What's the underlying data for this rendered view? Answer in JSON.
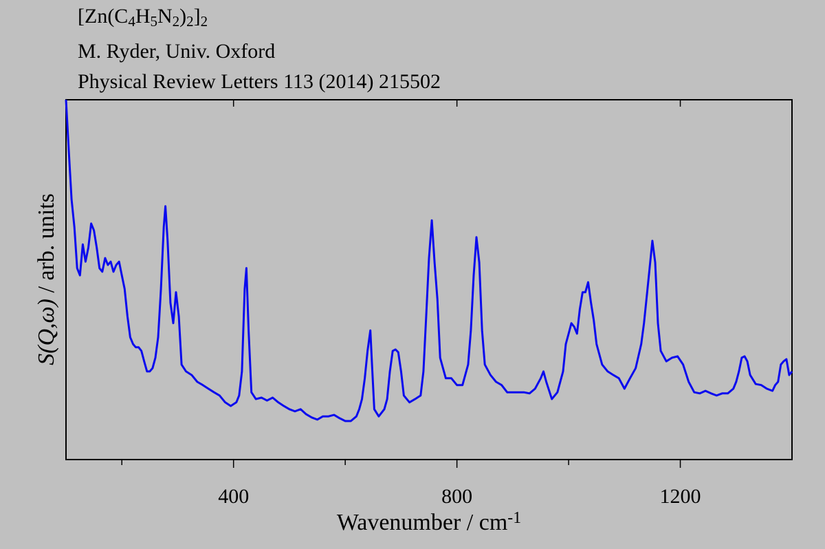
{
  "chart_data": {
    "type": "line",
    "title": [
      {
        "text": "[Zn(C"
      },
      {
        "text": "4",
        "sub": true
      },
      {
        "text": "H"
      },
      {
        "text": "5",
        "sub": true
      },
      {
        "text": "N"
      },
      {
        "text": "2",
        "sub": true
      },
      {
        "text": ")"
      },
      {
        "text": "2",
        "sub": true
      },
      {
        "text": "]"
      },
      {
        "text": "2",
        "sub": true
      }
    ],
    "subtitle": [
      "M. Ryder, Univ. Oxford",
      "Physical Review Letters 113 (2014) 215502"
    ],
    "xlabel": [
      {
        "text": "Wavenumber / cm"
      },
      {
        "text": "-1",
        "sup": true
      }
    ],
    "ylabel": [
      {
        "text": "S(Q,ω)",
        "italic": true
      },
      {
        "text": " / arb. units"
      }
    ],
    "xlim": [
      100,
      1400
    ],
    "xticks": [
      400,
      800,
      1200
    ],
    "xminor": [
      200,
      600,
      1000
    ],
    "ylim": [
      0,
      100
    ],
    "grid": false,
    "series": [
      {
        "color": "#0a0aee",
        "x": [
          100,
          105,
          110,
          115,
          120,
          125,
          130,
          135,
          140,
          145,
          150,
          155,
          160,
          165,
          170,
          175,
          180,
          185,
          190,
          195,
          200,
          205,
          210,
          215,
          220,
          225,
          230,
          235,
          240,
          245,
          250,
          255,
          260,
          265,
          270,
          275,
          278,
          282,
          287,
          292,
          297,
          302,
          307,
          315,
          325,
          335,
          345,
          355,
          365,
          375,
          385,
          395,
          405,
          410,
          415,
          420,
          423,
          427,
          432,
          440,
          450,
          460,
          470,
          480,
          490,
          500,
          510,
          520,
          530,
          540,
          550,
          560,
          570,
          580,
          590,
          600,
          610,
          620,
          625,
          630,
          635,
          640,
          645,
          648,
          652,
          660,
          670,
          675,
          680,
          685,
          690,
          695,
          700,
          705,
          715,
          725,
          735,
          740,
          745,
          750,
          755,
          760,
          765,
          770,
          780,
          790,
          800,
          810,
          820,
          825,
          830,
          835,
          840,
          845,
          850,
          860,
          870,
          880,
          890,
          900,
          910,
          920,
          930,
          940,
          950,
          955,
          960,
          970,
          980,
          990,
          995,
          1000,
          1005,
          1010,
          1015,
          1020,
          1025,
          1030,
          1035,
          1040,
          1045,
          1050,
          1060,
          1070,
          1080,
          1090,
          1100,
          1110,
          1120,
          1130,
          1135,
          1140,
          1145,
          1150,
          1155,
          1160,
          1165,
          1175,
          1185,
          1195,
          1205,
          1215,
          1225,
          1235,
          1245,
          1255,
          1265,
          1275,
          1285,
          1295,
          1300,
          1305,
          1310,
          1315,
          1320,
          1325,
          1335,
          1345,
          1355,
          1365,
          1370,
          1375,
          1380,
          1385,
          1390,
          1395,
          1400
        ],
        "values": [
          100,
          85.7,
          72.3,
          64.6,
          53.2,
          51.2,
          59.8,
          55,
          58.9,
          65.6,
          63.7,
          58.9,
          53.2,
          52.2,
          56,
          54.1,
          55,
          52.2,
          54.1,
          55,
          51.2,
          47.4,
          39.8,
          34,
          32.1,
          31.2,
          31.2,
          30.2,
          27.3,
          24.5,
          24.5,
          25.4,
          28.3,
          34,
          47.4,
          64.6,
          70.4,
          60.8,
          43.6,
          37.9,
          46.5,
          39.8,
          26.4,
          24.5,
          23.5,
          21.6,
          20.7,
          19.7,
          18.7,
          17.8,
          15.9,
          14.9,
          15.9,
          17.8,
          24.5,
          47.4,
          53.2,
          35.9,
          18.7,
          16.8,
          17.2,
          16.4,
          17.2,
          15.9,
          14.9,
          14,
          13.4,
          14,
          12.6,
          11.7,
          11.1,
          12,
          12,
          12.4,
          11.5,
          10.7,
          10.7,
          12,
          14,
          16.8,
          22.6,
          30.2,
          35.9,
          26.4,
          14,
          12,
          14,
          16.8,
          24.5,
          30.2,
          30.6,
          29.8,
          24.5,
          17.8,
          15.9,
          16.8,
          17.8,
          24.5,
          39.8,
          56,
          66.5,
          54.8,
          44.6,
          28.3,
          22.6,
          22.6,
          20.7,
          20.7,
          26.4,
          35.9,
          51.2,
          61.8,
          54.8,
          35.9,
          26.4,
          23.5,
          21.6,
          20.7,
          18.7,
          18.7,
          18.7,
          18.7,
          18.4,
          19.7,
          22.6,
          24.5,
          21.6,
          16.8,
          18.7,
          24.5,
          32.1,
          35,
          37.9,
          36.9,
          35,
          41.7,
          46.5,
          46.5,
          49.3,
          43.6,
          38.8,
          32.1,
          26.4,
          24.5,
          23.5,
          22.6,
          19.7,
          22.6,
          25.4,
          32.1,
          37.9,
          45.5,
          53.2,
          60.8,
          54.8,
          37.9,
          30.2,
          27.3,
          28.3,
          28.7,
          26.4,
          21.6,
          18.7,
          18.4,
          19.1,
          18.4,
          17.8,
          18.4,
          18.4,
          19.7,
          21.6,
          24.5,
          28.3,
          28.7,
          27.3,
          23.5,
          21,
          20.7,
          19.7,
          19.1,
          20.7,
          21.6,
          26.4,
          27.3,
          27.9,
          23.5,
          24.5
        ]
      }
    ]
  }
}
